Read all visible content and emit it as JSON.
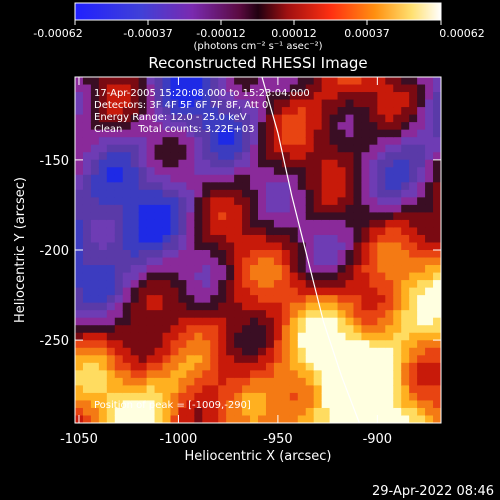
{
  "colorbar": {
    "tick_labels": [
      "-0.00062",
      "-0.00037",
      "-0.00012",
      "0.00012",
      "0.00037",
      "0.00062"
    ],
    "unit_label": "(photons cm⁻² s⁻¹ asec⁻²)"
  },
  "footer": {
    "timestamp": "29-Apr-2022 08:46"
  },
  "chart_data": {
    "type": "heatmap",
    "title": "Reconstructed RHESSI Image",
    "xlabel": "Heliocentric X (arcsec)",
    "ylabel": "Heliocentric Y (arcsec)",
    "xlim": [
      -1052,
      -868
    ],
    "ylim": [
      -296,
      -104
    ],
    "x_ticks": [
      -1050,
      -1000,
      -950,
      -900
    ],
    "x_tick_labels": [
      "-1050",
      "-1000",
      "-950",
      "-900"
    ],
    "y_ticks": [
      -150,
      -200,
      -250
    ],
    "y_tick_labels": [
      "-150",
      "-200",
      "-250"
    ],
    "color_range": [
      -0.00062,
      0.00062
    ],
    "annotations": [
      "17-Apr-2005 15:20:08.000 to 15:23:04.000",
      "Detectors: 3F 4F 5F 6F 7F 8F, Att 0",
      "Energy Range: 12.0 - 25.0 keV",
      "Clean     Total counts: 3.22E+03"
    ],
    "peak_label": "Position of peak = [-1009,-290]",
    "peak_position": [
      -1009,
      -290
    ],
    "limb_curve": {
      "x": [
        -958,
        -950,
        -943,
        -935,
        -927,
        -918,
        -909
      ],
      "y": [
        -104,
        -135,
        -170,
        -205,
        -240,
        -270,
        -296
      ]
    },
    "colormap": [
      "#1e2ae6",
      "#3c3cc0",
      "#5a3aa8",
      "#6e3cb4",
      "#8a2a9a",
      "#3a0e24",
      "#7a0a12",
      "#c81a0a",
      "#e84412",
      "#f47a14",
      "#ffb020",
      "#ffdc60",
      "#ffffe0"
    ]
  }
}
